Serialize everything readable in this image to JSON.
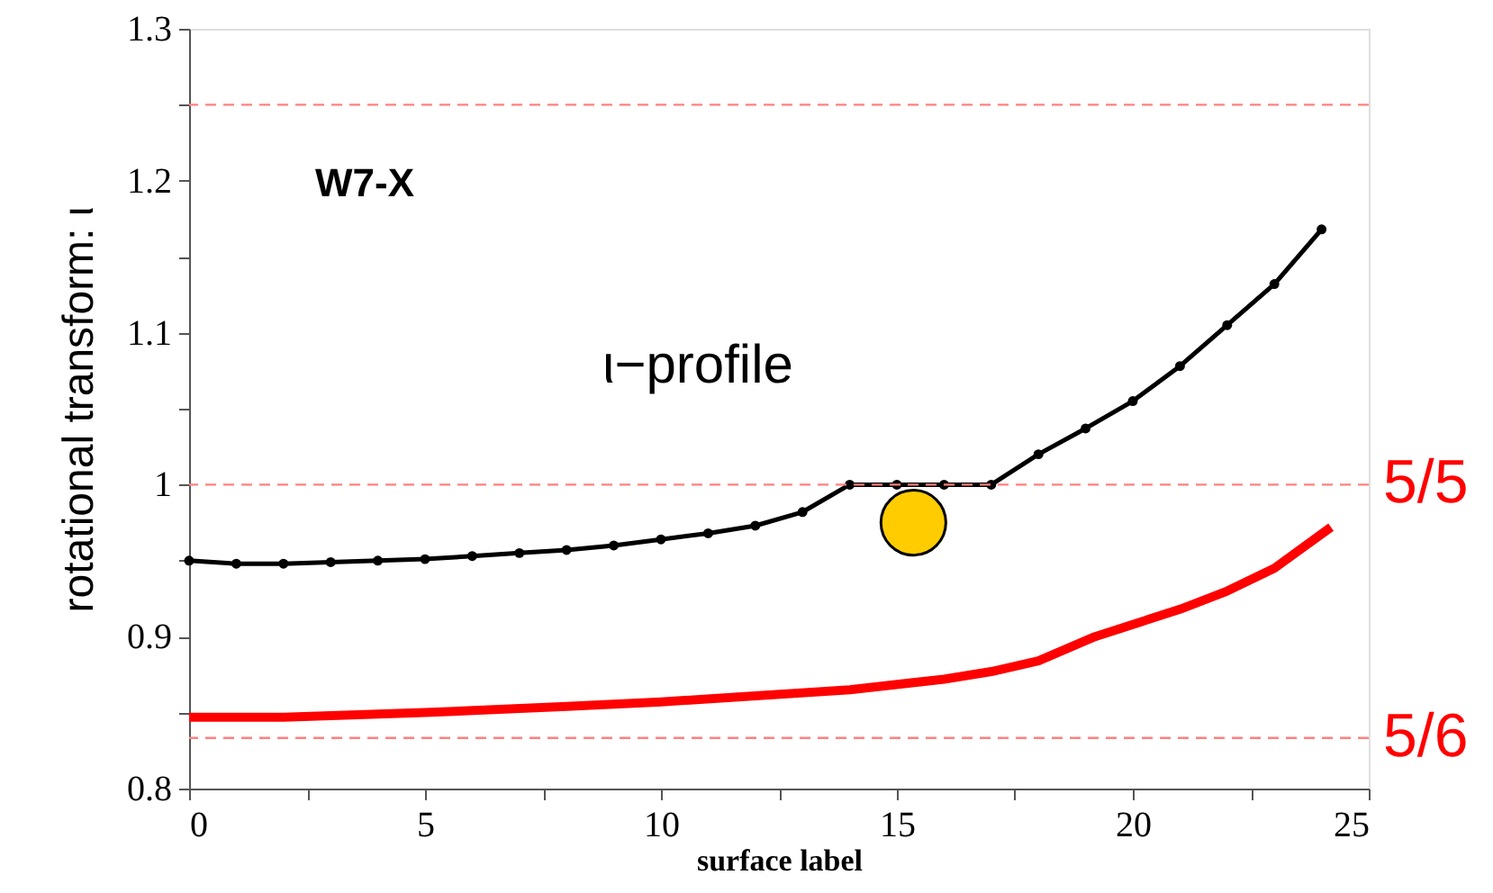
{
  "chart_data": {
    "type": "line",
    "xlabel": "surface label",
    "ylabel": "rotational transform: ι",
    "xlim": [
      0,
      25
    ],
    "ylim": [
      0.8,
      1.3
    ],
    "xticks": [
      0,
      {
        "value": 2.5,
        "label": null
      },
      5,
      {
        "value": 7.5,
        "label": null
      },
      10,
      {
        "value": 12.5,
        "label": null
      },
      15,
      {
        "value": 17.5,
        "label": null
      },
      20,
      {
        "value": 22.5,
        "label": null
      },
      25
    ],
    "yticks": [
      {
        "value": 0.8,
        "label": "0.8"
      },
      {
        "value": 0.85,
        "label": null
      },
      {
        "value": 0.9,
        "label": "0.9"
      },
      {
        "value": 0.95,
        "label": null
      },
      1,
      {
        "value": 1.05,
        "label": null
      },
      {
        "value": 1.1,
        "label": "1.1"
      },
      {
        "value": 1.15,
        "label": null
      },
      {
        "value": 1.2,
        "label": "1.2"
      },
      {
        "value": 1.25,
        "label": null
      },
      {
        "value": 1.3,
        "label": "1.3"
      }
    ],
    "grid": false,
    "series": [
      {
        "color": "#000000",
        "marker": "circle",
        "x": [
          0,
          1,
          2,
          3,
          4,
          5,
          6,
          7,
          8,
          9,
          10,
          11,
          12,
          13,
          14,
          15,
          16,
          17,
          18,
          19,
          20,
          21,
          22,
          23,
          24
        ],
        "values": [
          0.95,
          0.948,
          0.948,
          0.949,
          0.95,
          0.951,
          0.953,
          0.955,
          0.957,
          0.96,
          0.964,
          0.968,
          0.973,
          0.982,
          1.0,
          1.0,
          1.0,
          1.0,
          1.02,
          1.037,
          1.055,
          1.078,
          1.105,
          1.132,
          1.168
        ]
      },
      {
        "color": "#ff0000",
        "marker": "none",
        "x": [
          0,
          2,
          5,
          8,
          10,
          12,
          14,
          16,
          17,
          18,
          19.2,
          20,
          21,
          22,
          23,
          24.2
        ],
        "values": [
          0.847,
          0.847,
          0.85,
          0.854,
          0.857,
          0.861,
          0.865,
          0.872,
          0.877,
          0.884,
          0.9,
          0.908,
          0.918,
          0.93,
          0.945,
          0.972
        ]
      },
      {
        "type": "scatter",
        "color": "#ffcc00",
        "marker": "circle",
        "x": [
          15.35
        ],
        "values": [
          0.975
        ]
      }
    ],
    "ref_lines": [
      {
        "axis": "y",
        "value": 1.25,
        "color": "#ff8080",
        "line_style": "dashed"
      },
      {
        "axis": "y",
        "value": 1.0,
        "color": "#ff8080",
        "line_style": "dashed"
      },
      {
        "axis": "y",
        "value": 0.8333,
        "color": "#ff8080",
        "line_style": "dashed"
      }
    ],
    "annotations": [
      "W7-X",
      "ι−profile",
      {
        "text": "5/5",
        "x": 25,
        "y": 1.0
      },
      {
        "text": "5/6",
        "x": 25,
        "y": 0.8333
      }
    ]
  }
}
